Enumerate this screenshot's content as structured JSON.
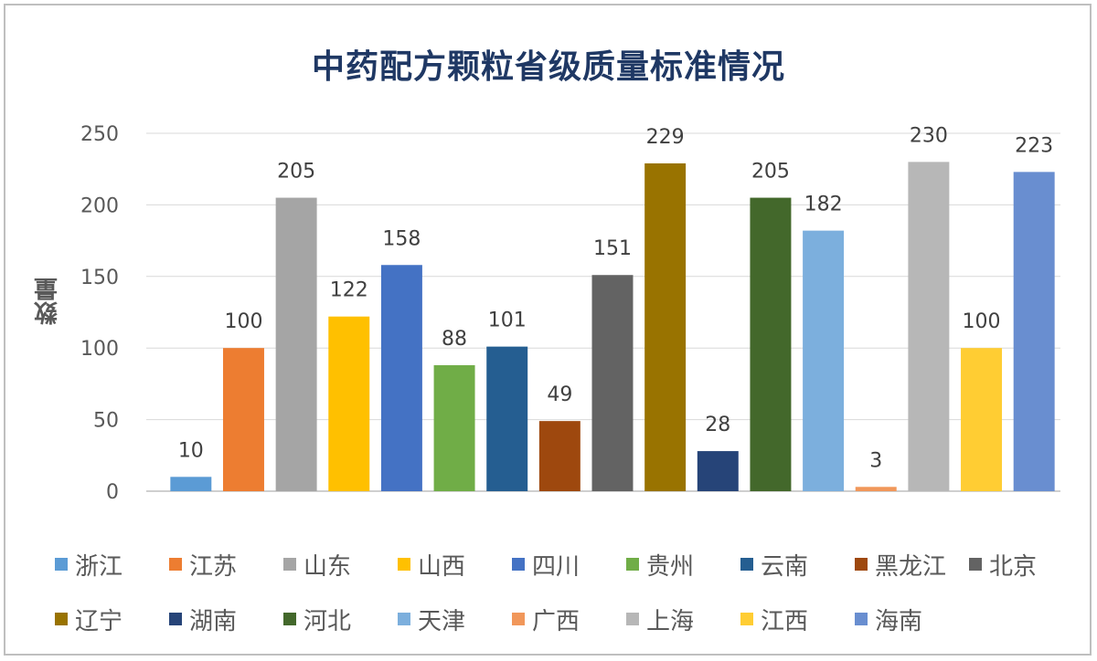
{
  "chart_data": {
    "type": "bar",
    "title": "中药配方颗粒省级质量标准情况",
    "ylabel": "数量",
    "xlabel": "",
    "ylim": [
      0,
      250
    ],
    "yticks": [
      0,
      50,
      100,
      150,
      200,
      250
    ],
    "grid": true,
    "legend_position": "bottom",
    "categories": [
      "浙江",
      "江苏",
      "山东",
      "山西",
      "四川",
      "贵州",
      "云南",
      "黑龙江",
      "北京",
      "辽宁",
      "湖南",
      "河北",
      "天津",
      "广西",
      "上海",
      "江西",
      "海南"
    ],
    "values": [
      10,
      100,
      205,
      122,
      158,
      88,
      101,
      49,
      151,
      229,
      28,
      205,
      182,
      3,
      230,
      100,
      223
    ],
    "colors": [
      "#5b9bd5",
      "#ed7d31",
      "#a5a5a5",
      "#ffc000",
      "#4472c4",
      "#70ad47",
      "#255e91",
      "#9e480e",
      "#636363",
      "#997300",
      "#264478",
      "#43682b",
      "#7cafdd",
      "#f1975a",
      "#b7b7b7",
      "#ffcd33",
      "#698ed0"
    ]
  }
}
